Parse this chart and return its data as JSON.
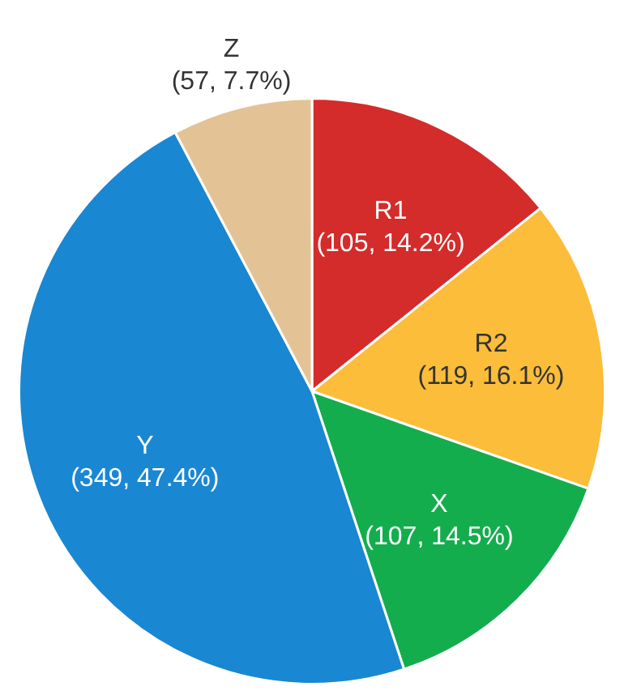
{
  "chart_data": {
    "type": "pie",
    "categories": [
      "R1",
      "R2",
      "X",
      "Y",
      "Z"
    ],
    "values": [
      105,
      119,
      107,
      349,
      57
    ],
    "colors": [
      "#d42b2b",
      "#fbbd3a",
      "#14ad4e",
      "#1a87d2",
      "#e3c395"
    ],
    "value_labels": [
      "(105, 14.2%)",
      "(119, 16.1%)",
      "(107, 14.5%)",
      "(349, 47.4%)",
      "(57, 7.7%)"
    ],
    "legend": false
  }
}
